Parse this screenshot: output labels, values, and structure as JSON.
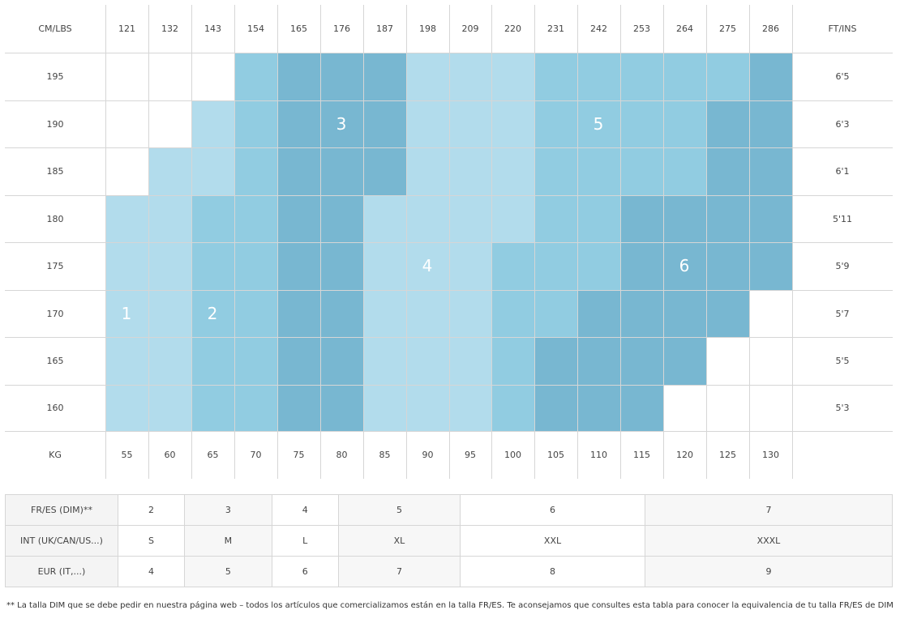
{
  "colors": {
    "z1": "#b2dcec",
    "z2": "#91cce1",
    "z3": "#78b7d1",
    "grid_line": "#d6d6d6",
    "zone_text": "#ffffff"
  },
  "chart": {
    "corner_left": "CM/LBS",
    "corner_right": "FT/INS",
    "lbs": [
      "121",
      "132",
      "143",
      "154",
      "165",
      "176",
      "187",
      "198",
      "209",
      "220",
      "231",
      "242",
      "253",
      "264",
      "275",
      "286"
    ],
    "cm": [
      "195",
      "190",
      "185",
      "180",
      "175",
      "170",
      "165",
      "160"
    ],
    "ftins": [
      "6'5",
      "6'3",
      "6'1",
      "5'11",
      "5'9",
      "5'7",
      "5'5",
      "5'3"
    ],
    "kg_label": "KG",
    "kg": [
      "55",
      "60",
      "65",
      "70",
      "75",
      "80",
      "85",
      "90",
      "95",
      "100",
      "105",
      "110",
      "115",
      "120",
      "125",
      "130"
    ],
    "zone_labels": [
      "1",
      "2",
      "3",
      "4",
      "5",
      "6"
    ]
  },
  "size_table": {
    "rows": [
      {
        "label": "FR/ES (DIM)**",
        "values": [
          "2",
          "3",
          "4",
          "5",
          "6",
          "7"
        ]
      },
      {
        "label": "INT (UK/CAN/US...)",
        "values": [
          "S",
          "M",
          "L",
          "XL",
          "XXL",
          "XXXL"
        ]
      },
      {
        "label": "EUR (IT,...)",
        "values": [
          "4",
          "5",
          "6",
          "7",
          "8",
          "9"
        ]
      }
    ]
  },
  "footnote": "** La talla DIM que se debe pedir en nuestra página web – todos los artículos que comercializamos están en la talla FR/ES. Te aconsejamos que consultes esta tabla para conocer la equivalencia de tu talla FR/ES de DIM"
}
